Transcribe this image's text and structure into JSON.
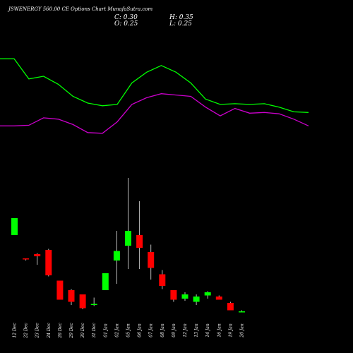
{
  "header": {
    "title": "JSWENERGY 560.00 CE Options Chart MunafaSutra.com",
    "close": "C: 0.30",
    "open": "O: 0.25",
    "high": "H: 0.35",
    "low": "L: 0.25"
  },
  "colors": {
    "background": "#000000",
    "bullish": "#00ff00",
    "bearish": "#ff0000",
    "upper_line": "#00ff00",
    "lower_line": "#cc00cc"
  },
  "chart_data": {
    "type": "candlestick",
    "categories": [
      "12 Dec",
      "22 Dec",
      "23 Dec",
      "24 Dec",
      "26 Dec",
      "29 Dec",
      "30 Dec",
      "31 Dec",
      "01 Jan",
      "02 Jan",
      "05 Jan",
      "06 Jan",
      "07 Jan",
      "08 Jan",
      "09 Jan",
      "12 Jan",
      "13 Jan",
      "14 Jan",
      "16 Jan",
      "19 Jan",
      "20 Jan"
    ],
    "ohlc": [
      {
        "open": 3.9,
        "high": 4.7,
        "low": 3.9,
        "close": 4.7
      },
      {
        "open": 2.8,
        "high": 2.8,
        "low": 2.7,
        "close": 2.75
      },
      {
        "open": 3.0,
        "high": 3.05,
        "low": 2.5,
        "close": 2.9
      },
      {
        "open": 3.2,
        "high": 3.25,
        "low": 1.95,
        "close": 2.0
      },
      {
        "open": 1.75,
        "high": 1.75,
        "low": 0.85,
        "close": 0.85
      },
      {
        "open": 1.3,
        "high": 1.35,
        "low": 0.6,
        "close": 0.75
      },
      {
        "open": 1.1,
        "high": 1.1,
        "low": 0.4,
        "close": 0.45
      },
      {
        "open": 0.6,
        "high": 0.95,
        "low": 0.55,
        "close": 0.65
      },
      {
        "open": 1.3,
        "high": 2.1,
        "low": 1.3,
        "close": 2.1
      },
      {
        "open": 2.7,
        "high": 4.1,
        "low": 1.6,
        "close": 3.15
      },
      {
        "open": 3.4,
        "high": 6.6,
        "low": 2.3,
        "close": 4.1
      },
      {
        "open": 3.9,
        "high": 5.5,
        "low": 2.3,
        "close": 3.3
      },
      {
        "open": 3.1,
        "high": 3.45,
        "low": 1.8,
        "close": 2.35
      },
      {
        "open": 2.05,
        "high": 2.25,
        "low": 1.35,
        "close": 1.5
      },
      {
        "open": 1.3,
        "high": 1.3,
        "low": 0.75,
        "close": 0.85
      },
      {
        "open": 0.9,
        "high": 1.2,
        "low": 0.8,
        "close": 1.1
      },
      {
        "open": 0.75,
        "high": 1.1,
        "low": 0.6,
        "close": 1.0
      },
      {
        "open": 1.05,
        "high": 1.25,
        "low": 0.9,
        "close": 1.2
      },
      {
        "open": 1.0,
        "high": 1.05,
        "low": 0.85,
        "close": 0.85
      },
      {
        "open": 0.7,
        "high": 0.75,
        "low": 0.35,
        "close": 0.35
      },
      {
        "open": 0.25,
        "high": 0.35,
        "low": 0.25,
        "close": 0.3
      }
    ],
    "upper_band": [
      9.3,
      9.3,
      7.8,
      8.0,
      7.4,
      6.5,
      6.0,
      5.8,
      5.9,
      7.5,
      8.3,
      8.8,
      8.3,
      7.5,
      6.3,
      5.9,
      5.95,
      5.9,
      5.95,
      5.7,
      5.35,
      5.3
    ],
    "lower_band": [
      4.3,
      4.3,
      4.35,
      4.9,
      4.8,
      4.4,
      3.8,
      3.75,
      4.6,
      5.9,
      6.4,
      6.7,
      6.6,
      6.5,
      5.7,
      5.05,
      5.6,
      5.25,
      5.3,
      5.2,
      4.8,
      4.3
    ]
  }
}
